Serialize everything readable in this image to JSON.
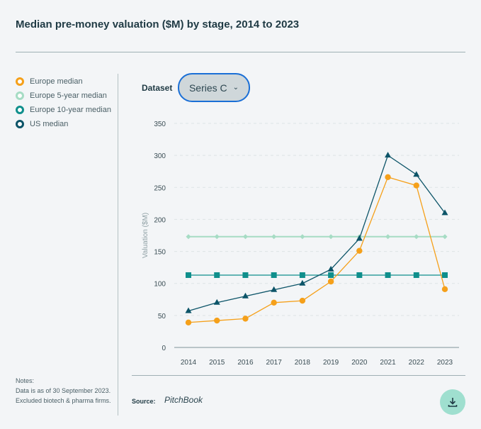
{
  "title": "Median pre-money valuation ($M) by stage, 2014 to 2023",
  "dataset": {
    "label": "Dataset",
    "selected": "Series C"
  },
  "notes": [
    "Notes:",
    "Data is as of 30 September 2023.",
    "Excluded biotech & pharma firms."
  ],
  "source": {
    "label": "Source:",
    "brand": "PitchBook"
  },
  "chart_data": {
    "type": "line",
    "x": [
      "2014",
      "2015",
      "2016",
      "2017",
      "2018",
      "2019",
      "2020",
      "2021",
      "2022",
      "2023"
    ],
    "ylabel": "Valuation ($M)",
    "ylim": [
      0,
      350
    ],
    "yticks": [
      0,
      50,
      100,
      150,
      200,
      250,
      300,
      350
    ],
    "grid": true,
    "legend_position": "left",
    "series": [
      {
        "name": "Europe median",
        "color": "#f5a01a",
        "marker": "circle",
        "values": [
          39,
          42,
          45,
          70,
          73,
          103,
          151,
          266,
          253,
          91
        ]
      },
      {
        "name": "Europe 5-year median",
        "color": "#a6dcc4",
        "marker": "diamond",
        "values": [
          173,
          173,
          173,
          173,
          173,
          173,
          173,
          173,
          173,
          173
        ]
      },
      {
        "name": "Europe 10-year median",
        "color": "#0f8f8c",
        "marker": "square",
        "values": [
          113,
          113,
          113,
          113,
          113,
          113,
          113,
          113,
          113,
          113
        ]
      },
      {
        "name": "US median",
        "color": "#0c5468",
        "marker": "triangle",
        "values": [
          57,
          70,
          80,
          90,
          100,
          122,
          170,
          300,
          270,
          210
        ]
      }
    ]
  }
}
